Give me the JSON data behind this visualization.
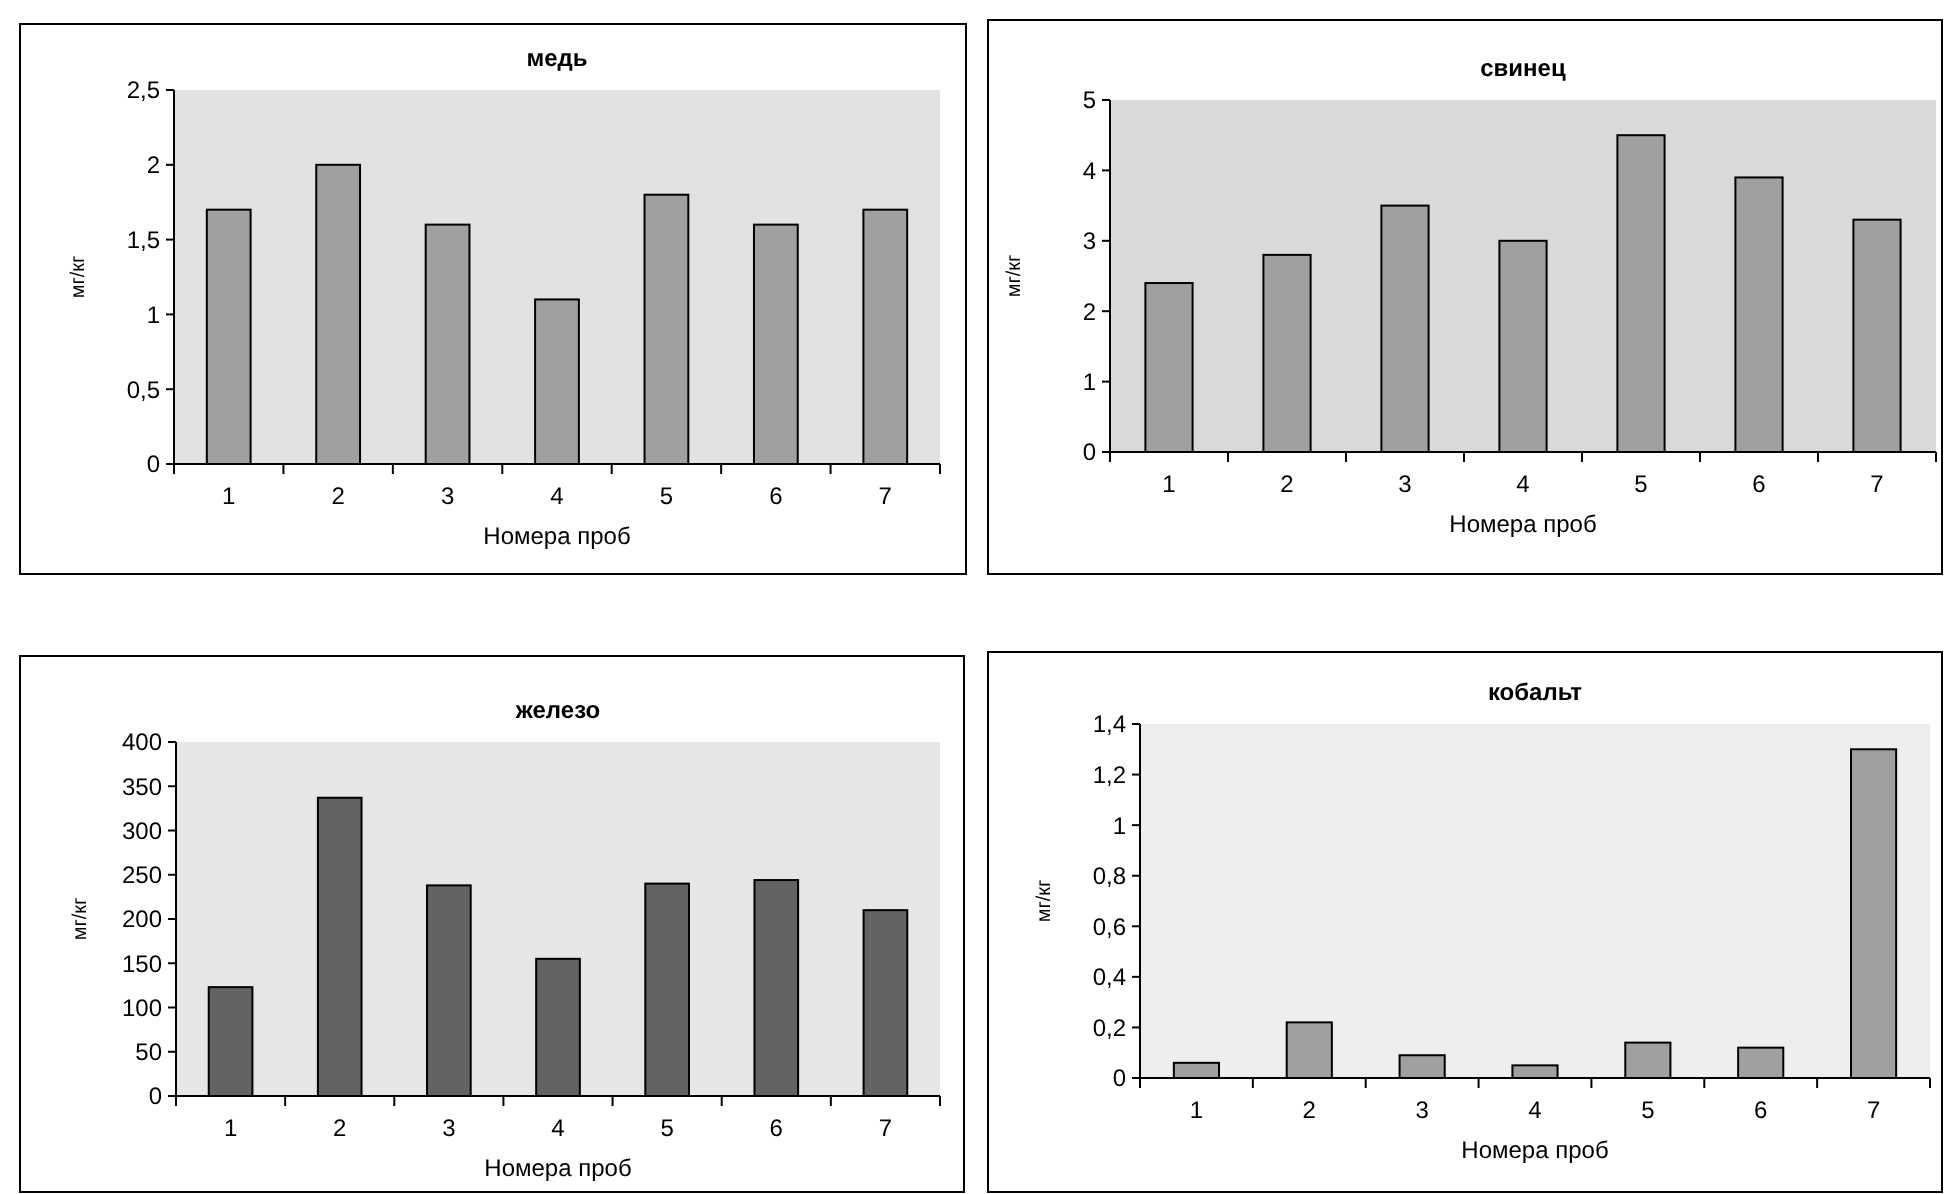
{
  "chart_data": [
    {
      "type": "bar",
      "title": "медь",
      "xlabel": "Номера проб",
      "ylabel": "мг/кг",
      "categories": [
        "1",
        "2",
        "3",
        "4",
        "5",
        "6",
        "7"
      ],
      "values": [
        1.7,
        2.0,
        1.6,
        1.1,
        1.8,
        1.6,
        1.7
      ],
      "color": "#a0a0a0",
      "ylim": [
        0,
        2.5
      ],
      "yticks": [
        0,
        {
          "value": 0.5,
          "label": "0,5"
        },
        1,
        {
          "value": 1.5,
          "label": "1,5"
        },
        2,
        {
          "value": 2.5,
          "label": "2,5"
        }
      ],
      "grid": false
    },
    {
      "type": "bar",
      "title": "свинец",
      "xlabel": "Номера проб",
      "ylabel": "мг/кг",
      "categories": [
        "1",
        "2",
        "3",
        "4",
        "5",
        "6",
        "7"
      ],
      "values": [
        2.4,
        2.8,
        3.5,
        3.0,
        4.5,
        3.9,
        3.3
      ],
      "color": "#a0a0a0",
      "ylim": [
        0,
        5
      ],
      "yticks": [
        0,
        1,
        2,
        3,
        4,
        5
      ],
      "grid": false
    },
    {
      "type": "bar",
      "title": "железо",
      "xlabel": "Номера проб",
      "ylabel": "мг/кг",
      "categories": [
        "1",
        "2",
        "3",
        "4",
        "5",
        "6",
        "7"
      ],
      "values": [
        123,
        337,
        238,
        155,
        240,
        244,
        210
      ],
      "color": "#636363",
      "ylim": [
        0,
        400
      ],
      "yticks": [
        0,
        50,
        100,
        150,
        200,
        250,
        300,
        350,
        400
      ],
      "grid": false
    },
    {
      "type": "bar",
      "title": "кобальт",
      "xlabel": "Номера проб",
      "ylabel": "мг/кг",
      "categories": [
        "1",
        "2",
        "3",
        "4",
        "5",
        "6",
        "7"
      ],
      "values": [
        0.06,
        0.22,
        0.09,
        0.05,
        0.14,
        0.12,
        1.3
      ],
      "color": "#a0a0a0",
      "ylim": [
        0,
        1.4
      ],
      "yticks": [
        0,
        {
          "value": 0.2,
          "label": "0,2"
        },
        {
          "value": 0.4,
          "label": "0,4"
        },
        {
          "value": 0.6,
          "label": "0,6"
        },
        {
          "value": 0.8,
          "label": "0,8"
        },
        1,
        {
          "value": 1.2,
          "label": "1,2"
        },
        {
          "value": 1.4,
          "label": "1,4"
        }
      ],
      "grid": false
    }
  ]
}
